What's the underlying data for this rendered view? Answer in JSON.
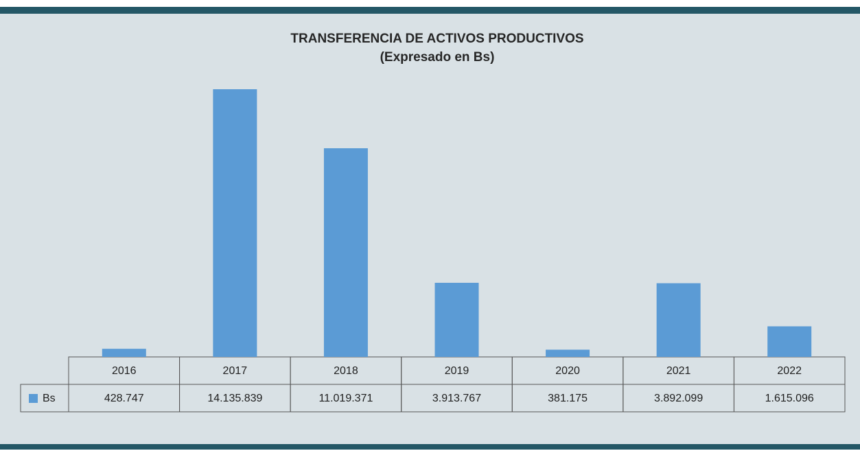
{
  "chart_data": {
    "type": "bar",
    "title": "TRANSFERENCIA DE ACTIVOS PRODUCTIVOS",
    "subtitle": "(Expresado en Bs)",
    "categories": [
      "2016",
      "2017",
      "2018",
      "2019",
      "2020",
      "2021",
      "2022"
    ],
    "series": [
      {
        "name": "Bs",
        "color": "#5b9bd5",
        "values": [
          428747,
          14135839,
          11019371,
          3913767,
          381175,
          3892099,
          1615096
        ],
        "value_labels": [
          "428.747",
          "14.135.839",
          "11.019.371",
          "3.913.767",
          "381.175",
          "3.892.099",
          "1.615.096"
        ]
      }
    ]
  }
}
